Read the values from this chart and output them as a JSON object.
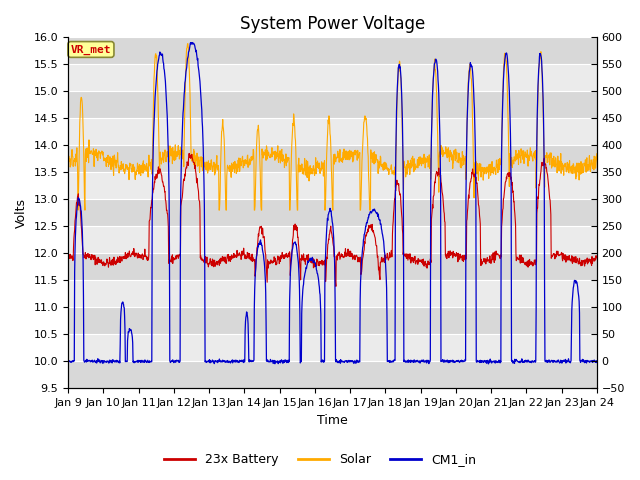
{
  "title": "System Power Voltage",
  "xlabel": "Time",
  "ylabel": "Volts",
  "ylim_left": [
    9.5,
    16.0
  ],
  "ylim_right": [
    -50,
    600
  ],
  "yticks_left": [
    9.5,
    10.0,
    10.5,
    11.0,
    11.5,
    12.0,
    12.5,
    13.0,
    13.5,
    14.0,
    14.5,
    15.0,
    15.5,
    16.0
  ],
  "yticks_right": [
    -50,
    0,
    50,
    100,
    150,
    200,
    250,
    300,
    350,
    400,
    450,
    500,
    550,
    600
  ],
  "xtick_labels": [
    "Jan 9",
    "Jan 10",
    "Jan 11",
    "Jan 12",
    "Jan 13",
    "Jan 14",
    "Jan 15",
    "Jan 16",
    "Jan 17",
    "Jan 18",
    "Jan 19",
    "Jan 20",
    "Jan 21",
    "Jan 22",
    "Jan 23",
    "Jan 24"
  ],
  "color_battery": "#cc0000",
  "color_solar": "#ffaa00",
  "color_cm1": "#0000cc",
  "annotation_text": "VR_met",
  "annotation_color": "#cc0000",
  "annotation_bg": "#ffff99",
  "annotation_border": "#888833",
  "legend_labels": [
    "23x Battery",
    "Solar",
    "CM1_in"
  ],
  "plot_bg_light": "#ebebeb",
  "plot_bg_dark": "#d8d8d8",
  "grid_color": "#ffffff",
  "title_fontsize": 12,
  "axis_fontsize": 9,
  "tick_fontsize": 8,
  "seed": 42,
  "n_days": 15,
  "pts_per_day": 96
}
